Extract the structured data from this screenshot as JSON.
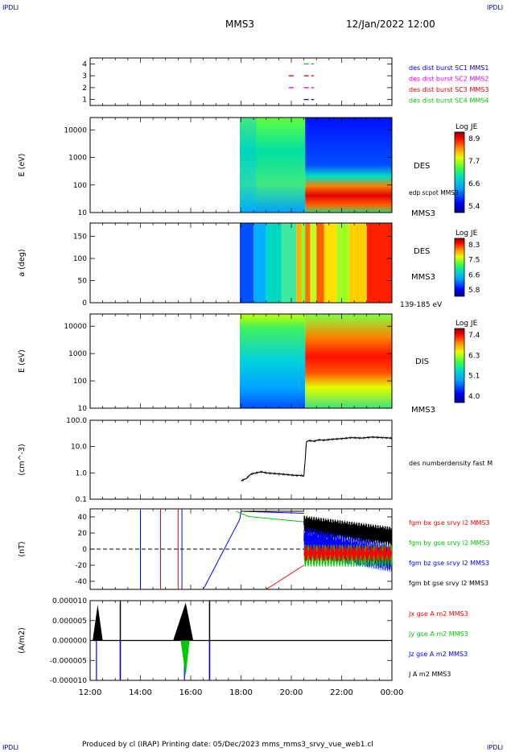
{
  "corners": {
    "tl": "IPDLI",
    "tr": "IPDLI",
    "bl": "IPDLI",
    "br": "IPDLI"
  },
  "header": {
    "mission": "MMS3",
    "datetime": "12/Jan/2022 12:00"
  },
  "footer": "Produced by cl (IRAP)   Printing date: 05/Dec/2023   mms_mms3_srvy_vue_web1.cl",
  "xaxis": {
    "ticks": [
      "12:00",
      "14:00",
      "16:00",
      "18:00",
      "20:00",
      "22:00",
      "00:00"
    ]
  },
  "colors": {
    "red": "#ff0000",
    "green": "#00c800",
    "blue": "#0000ff",
    "magenta": "#e000e0",
    "black": "#000000",
    "darkred": "#cc0000"
  },
  "chart_data": [
    {
      "type": "scatter",
      "name": "burst",
      "yticks": [
        "4",
        "3",
        "2",
        "1"
      ],
      "legend": [
        {
          "label": "des dist burst SC1 MMS1",
          "color": "#0000cc"
        },
        {
          "label": "des dist burst SC2 MMS2",
          "color": "#e000e0"
        },
        {
          "label": "des dist burst SC3 MMS3",
          "color": "#dd0000"
        },
        {
          "label": "des dist burst SC4 MMS4",
          "color": "#00c800"
        }
      ],
      "segments": [
        {
          "row": 4,
          "start": 20.5,
          "end": 20.9,
          "color": "#00c800"
        },
        {
          "row": 3,
          "start": 19.9,
          "end": 20.1,
          "color": "#dd0000"
        },
        {
          "row": 3,
          "start": 20.5,
          "end": 20.9,
          "color": "#dd0000"
        },
        {
          "row": 2,
          "start": 19.9,
          "end": 20.1,
          "color": "#e000e0"
        },
        {
          "row": 2,
          "start": 20.5,
          "end": 20.9,
          "color": "#e000e0"
        },
        {
          "row": 1,
          "start": 20.5,
          "end": 20.9,
          "color": "#0000cc"
        }
      ]
    },
    {
      "type": "heatmap",
      "name": "des-energy",
      "ylabel": "E (eV)",
      "yticks": [
        "10000",
        "1000",
        "100",
        "10"
      ],
      "colorbar": {
        "title": "Log JE",
        "ticks": [
          "8.9",
          "7.7",
          "6.6",
          "5.4"
        ]
      },
      "labels": [
        "DES",
        "edp scpot MMS3",
        "MMS3"
      ]
    },
    {
      "type": "heatmap",
      "name": "des-pitch",
      "ylabel": "a (deg)",
      "yticks": [
        "150",
        "100",
        "50",
        "0"
      ],
      "colorbar": {
        "title": "Log JE",
        "ticks": [
          "8.3",
          "7.5",
          "6.6",
          "5.8"
        ]
      },
      "labels": [
        "DES",
        "MMS3",
        "139-185 eV"
      ]
    },
    {
      "type": "heatmap",
      "name": "dis-energy",
      "ylabel": "E (eV)",
      "yticks": [
        "10000",
        "1000",
        "100",
        "10"
      ],
      "colorbar": {
        "title": "Log JE",
        "ticks": [
          "7.4",
          "6.3",
          "5.1",
          "4.0"
        ]
      },
      "labels": [
        "DIS",
        "MMS3"
      ]
    },
    {
      "type": "line",
      "name": "density",
      "ylabel": "(cm^-3)",
      "yticks": [
        "100.0",
        "10.0",
        "1.0",
        "0.1"
      ],
      "series": [
        {
          "name": "des numberdensity fast M",
          "color": "#000000",
          "x": [
            18.0,
            18.2,
            18.4,
            18.6,
            18.8,
            19.0,
            19.3,
            19.6,
            19.9,
            20.2,
            20.4,
            20.5,
            20.55,
            20.6,
            20.7,
            20.9,
            21.1,
            21.3,
            21.6,
            22.0,
            22.4,
            22.8,
            23.2,
            23.6,
            24.0
          ],
          "y": [
            0.5,
            0.6,
            0.9,
            1.0,
            1.1,
            1.0,
            0.95,
            0.9,
            0.85,
            0.8,
            0.8,
            0.75,
            3.0,
            15.0,
            17.0,
            16.0,
            18.0,
            17.5,
            19.0,
            20.0,
            22.0,
            21.0,
            23.0,
            22.0,
            21.0
          ]
        }
      ]
    },
    {
      "type": "line",
      "name": "magnetic-field",
      "ylabel": "(nT)",
      "yticks": [
        "40",
        "20",
        "0",
        "-20",
        "-40"
      ],
      "series": [
        {
          "name": "fgm bx gse srvy l2 MMS3",
          "color": "#ff0000"
        },
        {
          "name": "fgm by gse srvy l2 MMS3",
          "color": "#00c800"
        },
        {
          "name": "fgm bz gse srvy l2 MMS3",
          "color": "#0000ff"
        },
        {
          "name": "fgm bt gse srvy l2 MMS3",
          "color": "#000000"
        }
      ]
    },
    {
      "type": "line",
      "name": "current",
      "ylabel": "(A/m2)",
      "yticks": [
        "0.000010",
        "0.000005",
        "0.000000",
        "-0.000005",
        "-0.000010"
      ],
      "series": [
        {
          "name": "Jx gse A m2 MMS3",
          "color": "#ff0000"
        },
        {
          "name": "Jy gse A m2 MMS3",
          "color": "#00c800"
        },
        {
          "name": "Jz gse A m2 MMS3",
          "color": "#0000ff"
        },
        {
          "name": "J A m2 MMS3",
          "color": "#000000"
        }
      ]
    }
  ]
}
